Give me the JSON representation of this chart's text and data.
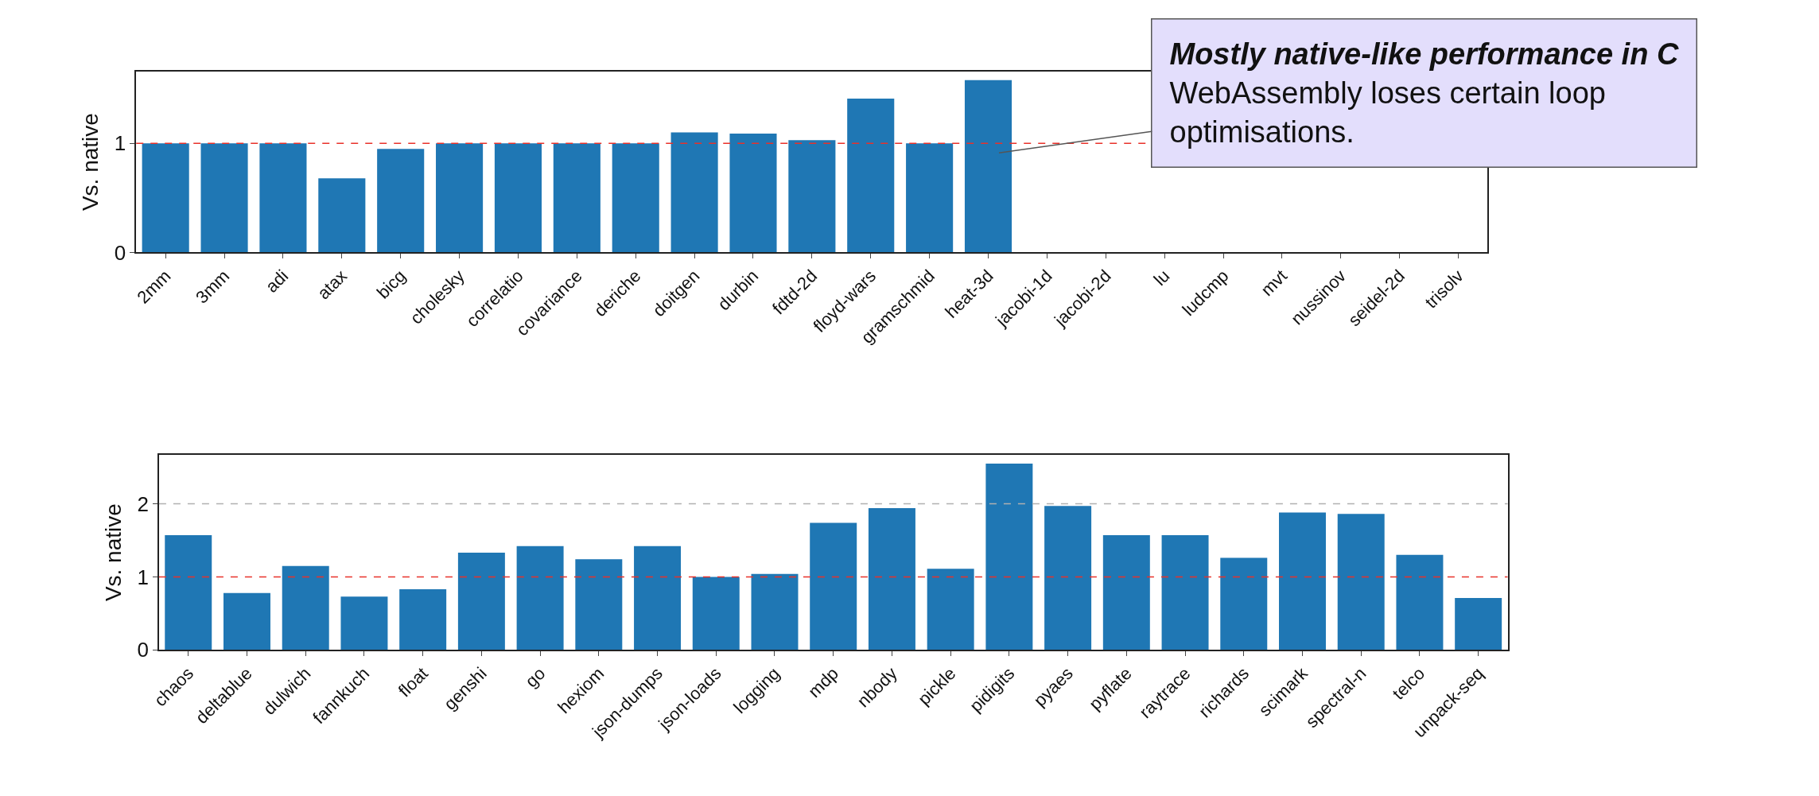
{
  "chart_data": [
    {
      "type": "bar",
      "ylabel": "Vs. native",
      "color": "#1f77b4",
      "ylim": [
        0,
        1.66
      ],
      "yticks": [
        0,
        1
      ],
      "categories": [
        "2mm",
        "3mm",
        "adi",
        "atax",
        "bicg",
        "cholesky",
        "correlatio",
        "covariance",
        "deriche",
        "doitgen",
        "durbin",
        "fdtd-2d",
        "floyd-wars",
        "gramschmid",
        "heat-3d",
        "jacobi-1d",
        "jacobi-2d",
        "lu",
        "ludcmp",
        "mvt",
        "nussinov",
        "seidel-2d",
        "trisolv"
      ],
      "values": [
        1.0,
        1.0,
        1.0,
        0.68,
        0.95,
        1.0,
        1.0,
        1.0,
        1.0,
        1.1,
        1.09,
        1.03,
        1.41,
        1.0,
        1.58,
        null,
        null,
        null,
        null,
        null,
        null,
        null,
        null
      ],
      "ref_lines": [
        {
          "axis": "y",
          "value": 1,
          "label": null,
          "color": "#e8312a",
          "line_style": "dashed"
        }
      ],
      "annotations": [
        "Mostly native-like performance in C",
        "WebAssembly loses certain loop optimisations."
      ]
    },
    {
      "type": "bar",
      "ylabel": "Vs. native",
      "color": "#1f77b4",
      "ylim": [
        0,
        2.67
      ],
      "yticks": [
        0,
        1,
        2
      ],
      "categories": [
        "chaos",
        "deltablue",
        "dulwich",
        "fannkuch",
        "float",
        "genshi",
        "go",
        "hexiom",
        "json-dumps",
        "json-loads",
        "logging",
        "mdp",
        "nbody",
        "pickle",
        "pidigits",
        "pyaes",
        "pyflate",
        "raytrace",
        "richards",
        "scimark",
        "spectral-n",
        "telco",
        "unpack-seq"
      ],
      "values": [
        1.57,
        0.78,
        1.15,
        0.73,
        0.83,
        1.33,
        1.42,
        1.24,
        1.42,
        1.0,
        1.04,
        1.74,
        1.94,
        1.11,
        2.55,
        1.97,
        1.57,
        1.57,
        1.26,
        1.88,
        1.86,
        1.3,
        0.71
      ],
      "ref_lines": [
        {
          "axis": "y",
          "value": 2,
          "label": null,
          "color": "#b0b0b0",
          "line_style": "dashed"
        },
        {
          "axis": "y",
          "value": 1,
          "label": null,
          "color": "#e8312a",
          "line_style": "dashed"
        }
      ]
    }
  ]
}
